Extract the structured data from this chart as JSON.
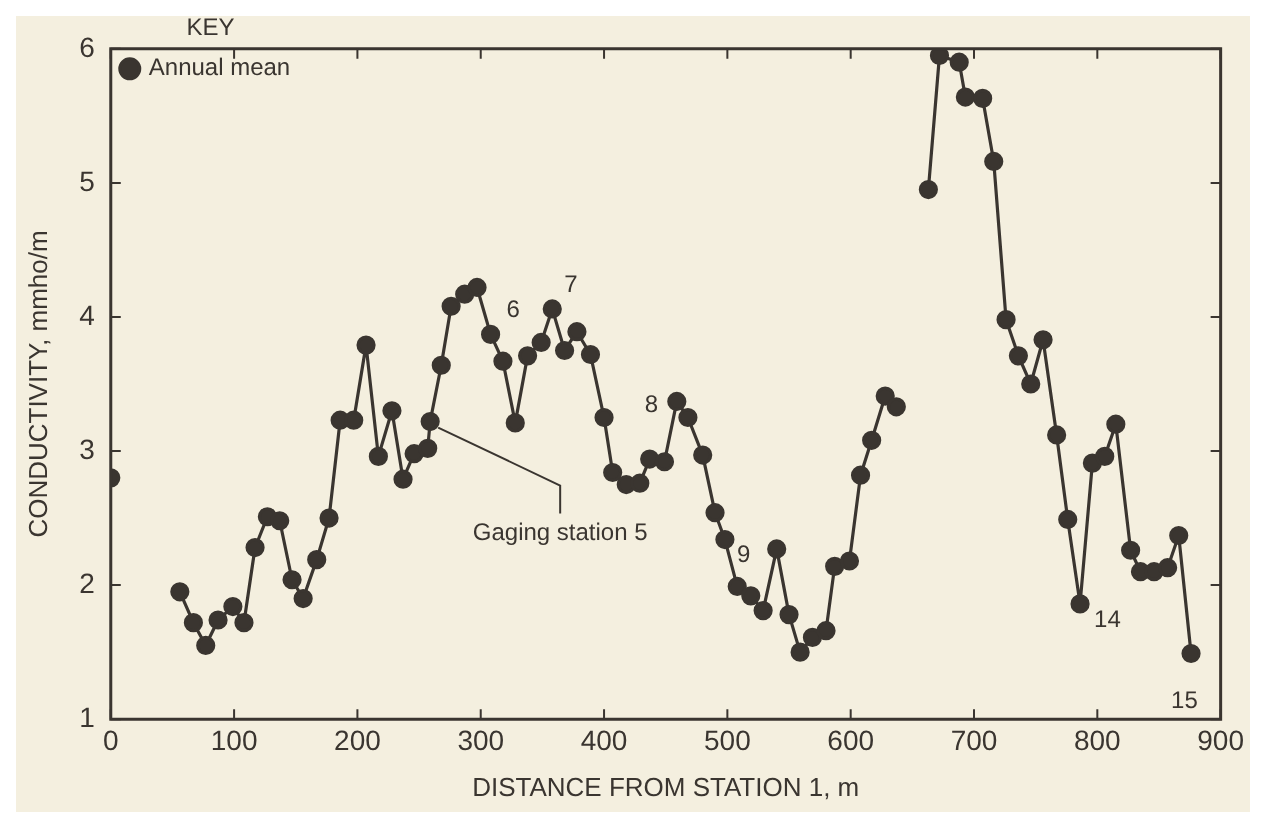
{
  "chart_data": {
    "type": "line",
    "xlabel": "DISTANCE FROM STATION 1, m",
    "ylabel": "CONDUCTIVITY, mmho/m",
    "legend_title": "KEY",
    "legend": "top left",
    "marker": "circle",
    "grid": false,
    "xlim": [
      0,
      900
    ],
    "xticks": [
      0,
      100,
      200,
      300,
      400,
      500,
      600,
      700,
      800,
      900
    ],
    "ylim": [
      1,
      6
    ],
    "yticks": [
      1,
      2,
      3,
      4,
      5,
      6
    ],
    "series": [
      {
        "name": "Annual mean",
        "color": "#3a3530",
        "x": [
          0,
          28,
          56,
          67,
          77,
          87,
          99,
          108,
          117,
          127,
          137,
          147,
          156,
          167,
          177,
          186,
          197,
          207,
          217,
          228,
          237,
          246,
          257,
          259,
          268,
          276,
          287,
          297,
          308,
          318,
          328,
          338,
          349,
          358,
          368,
          378,
          389,
          400,
          407,
          418,
          429,
          437,
          449,
          459,
          468,
          480,
          490,
          498,
          508,
          519,
          529,
          540,
          550,
          559,
          569,
          580,
          587,
          599,
          608,
          617,
          628,
          637,
          650,
          663,
          672,
          688,
          693,
          707,
          716,
          726,
          736,
          746,
          756,
          767,
          776,
          786,
          796,
          806,
          815,
          827,
          835,
          846,
          857,
          866,
          876
        ],
        "values": [
          2.8,
          null,
          1.95,
          1.72,
          1.55,
          1.74,
          1.84,
          1.72,
          2.28,
          2.51,
          2.48,
          2.04,
          1.9,
          2.19,
          2.5,
          3.23,
          3.23,
          3.79,
          2.96,
          3.3,
          2.79,
          2.98,
          3.02,
          3.22,
          3.64,
          4.08,
          4.17,
          4.22,
          3.87,
          3.67,
          3.21,
          3.71,
          3.81,
          4.06,
          3.75,
          3.89,
          3.72,
          3.25,
          2.84,
          2.75,
          2.76,
          2.94,
          2.92,
          3.37,
          3.25,
          2.97,
          2.54,
          2.34,
          1.99,
          1.92,
          1.81,
          2.27,
          1.78,
          1.5,
          1.61,
          1.66,
          2.14,
          2.18,
          2.82,
          3.08,
          3.41,
          3.33,
          null,
          4.95,
          5.95,
          5.9,
          5.64,
          5.63,
          5.16,
          3.98,
          3.71,
          3.5,
          3.83,
          3.12,
          2.49,
          1.86,
          2.91,
          2.96,
          3.2,
          2.26,
          2.1,
          2.1,
          2.13,
          2.37,
          1.49
        ]
      }
    ],
    "annotations": [
      {
        "text": "Gaging station 5",
        "x": 259,
        "y": 3.22
      },
      {
        "text": "6",
        "x": 308,
        "y": 3.87
      },
      {
        "text": "7",
        "x": 358,
        "y": 4.06
      },
      {
        "text": "8",
        "x": 459,
        "y": 3.37
      },
      {
        "text": "9",
        "x": 498,
        "y": 2.34
      },
      {
        "text": "14",
        "x": 786,
        "y": 1.86
      },
      {
        "text": "15",
        "x": 876,
        "y": 1.49
      }
    ]
  }
}
